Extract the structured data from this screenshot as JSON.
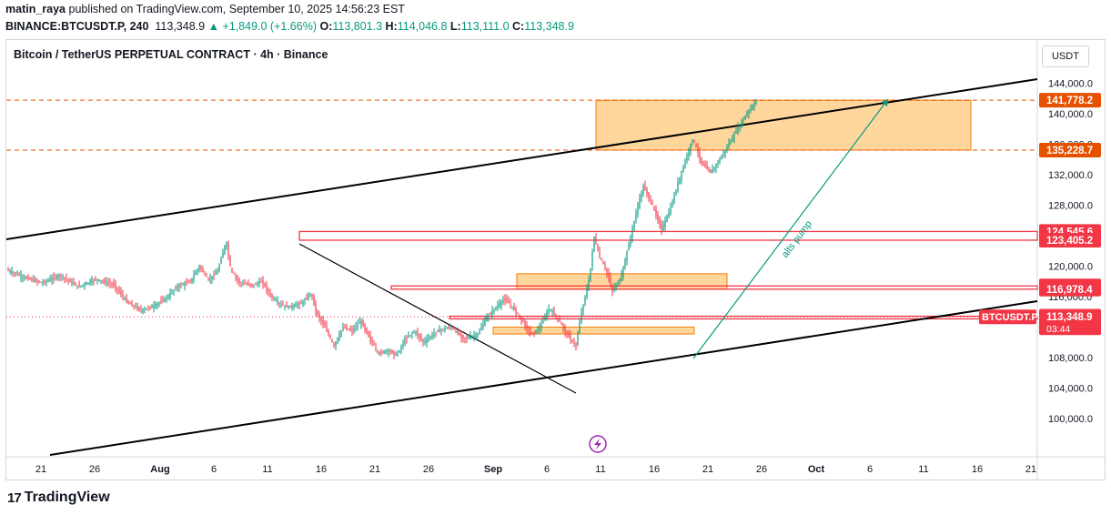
{
  "header": {
    "user": "matin_raya",
    "published_text": " published on TradingView.com, September 10, 2025 14:56:23 EST",
    "symbol": "BINANCE:BTCUSDT.P, 240",
    "last_price": "113,348.9",
    "change_arrow": "▲",
    "change": "+1,849.0 (+1.66%)",
    "o_label": "O:",
    "o_value": "113,801.3",
    "h_label": "H:",
    "h_value": "114,046.8",
    "l_label": "L:",
    "l_value": "113,111.0",
    "c_label": "C:",
    "c_value": "113,348.9"
  },
  "chart_title": "Bitcoin / TetherUS PERPETUAL CONTRACT · 4h · Binance",
  "currency": "USDT",
  "footer": {
    "brand": "TradingView",
    "logo_icon": "tradingview-logo-icon"
  },
  "chart_data": {
    "type": "candlestick",
    "symbol": "BTCUSDT.P",
    "timeframe": "4h",
    "ylim": [
      96000,
      146000
    ],
    "y_ticks": [
      100000,
      104000,
      108000,
      112000,
      116000,
      120000,
      124000,
      128000,
      132000,
      136000,
      140000,
      144000
    ],
    "y_tick_labels": [
      "100,000.0",
      "104,000.0",
      "108,000.0",
      "112,000.0",
      "116,000.0",
      "120,000.0",
      "124,000.0",
      "128,000.0",
      "132,000.0",
      "136,000.0",
      "140,000.0",
      "144,000.0"
    ],
    "x_ticks": [
      "21",
      "26",
      "Aug",
      "6",
      "11",
      "16",
      "21",
      "26",
      "Sep",
      "6",
      "11",
      "16",
      "21",
      "26",
      "Oct",
      "6",
      "11",
      "16",
      "21"
    ],
    "price_path": [
      [
        0,
        119500
      ],
      [
        4,
        118500
      ],
      [
        8,
        117800
      ],
      [
        12,
        118800
      ],
      [
        16,
        117300
      ],
      [
        20,
        118300
      ],
      [
        24,
        117500
      ],
      [
        27,
        115200
      ],
      [
        30,
        114200
      ],
      [
        33,
        114800
      ],
      [
        36,
        116000
      ],
      [
        38,
        117300
      ],
      [
        41,
        118000
      ],
      [
        43,
        120000
      ],
      [
        45,
        118200
      ],
      [
        47,
        119200
      ],
      [
        49,
        123300
      ],
      [
        50,
        119500
      ],
      [
        52,
        117800
      ],
      [
        55,
        117500
      ],
      [
        57,
        118000
      ],
      [
        59,
        116000
      ],
      [
        61,
        115000
      ],
      [
        63,
        114600
      ],
      [
        66,
        115200
      ],
      [
        68,
        116500
      ],
      [
        69,
        114000
      ],
      [
        71,
        112000
      ],
      [
        73,
        109500
      ],
      [
        75,
        112000
      ],
      [
        77,
        111500
      ],
      [
        79,
        112800
      ],
      [
        81,
        110500
      ],
      [
        83,
        108500
      ],
      [
        85,
        109000
      ],
      [
        87,
        108300
      ],
      [
        89,
        110500
      ],
      [
        91,
        111500
      ],
      [
        93,
        110000
      ],
      [
        96,
        111500
      ],
      [
        99,
        112000
      ],
      [
        102,
        110500
      ],
      [
        105,
        111000
      ],
      [
        107,
        113200
      ],
      [
        109,
        114500
      ],
      [
        111,
        115700
      ],
      [
        113,
        114500
      ],
      [
        115,
        112800
      ],
      [
        117,
        111000
      ],
      [
        119,
        112000
      ],
      [
        121,
        114500
      ],
      [
        123,
        113000
      ],
      [
        125,
        111000
      ],
      [
        127,
        109500
      ],
      [
        128,
        113500
      ],
      [
        130,
        118500
      ],
      [
        131,
        124000
      ],
      [
        132,
        121500
      ],
      [
        134,
        119000
      ],
      [
        135,
        116700
      ],
      [
        137,
        118500
      ],
      [
        139,
        123500
      ],
      [
        141,
        128500
      ],
      [
        142,
        130500
      ],
      [
        144,
        128000
      ],
      [
        146,
        124800
      ],
      [
        148,
        127500
      ],
      [
        150,
        131500
      ],
      [
        152,
        135000
      ],
      [
        153,
        136800
      ],
      [
        155,
        133500
      ],
      [
        157,
        132300
      ],
      [
        159,
        134000
      ],
      [
        161,
        136000
      ],
      [
        163,
        138000
      ],
      [
        165,
        140000
      ],
      [
        167,
        141500
      ]
    ],
    "zones": [
      {
        "from": 135228.7,
        "to": 141778.2,
        "x_start": "Sep 26",
        "x_end": "Oct 15",
        "color": "#ffb74d"
      },
      {
        "from": 116978.4,
        "to": 119000,
        "x_start": "Sep 2",
        "x_end": "Sep 23",
        "color": "#ffb74d"
      },
      {
        "from": 111100,
        "to": 112000,
        "x_start": "Aug 31",
        "x_end": "Sep 19",
        "color": "#ffb74d"
      }
    ],
    "levels": [
      {
        "value": 141778.2,
        "label": "141,778.2",
        "style": "dashed",
        "color": "#e65100"
      },
      {
        "value": 135228.7,
        "label": "135,228.7",
        "style": "dashed",
        "color": "#e65100"
      },
      {
        "value": 124545.6,
        "label": "124,545.6",
        "color": "#f23645"
      },
      {
        "value": 123405.2,
        "label": "123,405.2",
        "color": "#f23645"
      },
      {
        "value": 117397.4,
        "label": "117,397.4",
        "color": "#f23645"
      },
      {
        "value": 116978.4,
        "label": "116,978.4",
        "color": "#f23645"
      },
      {
        "value": 113426.7,
        "label": "113,426.7",
        "color": "#f23645"
      },
      {
        "value": 113079.2,
        "label": "113,079.2",
        "color": "#f23645"
      }
    ],
    "current_price": {
      "value": 113348.9,
      "label": "113,348.9",
      "symbol_label": "BTCUSDT.P",
      "countdown": "03:44"
    },
    "annotations": [
      {
        "text": "alts pump",
        "color": "#089981"
      }
    ]
  }
}
